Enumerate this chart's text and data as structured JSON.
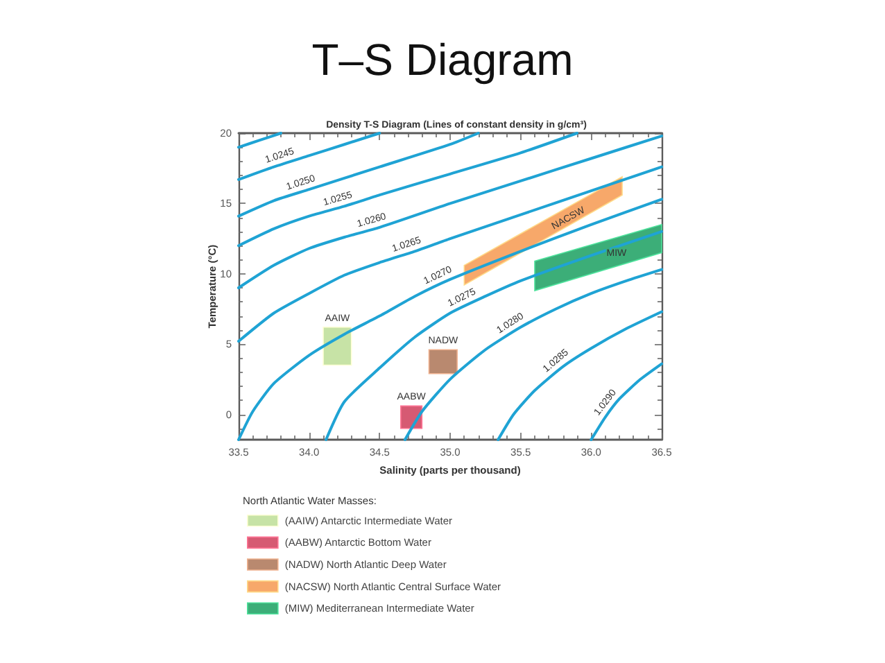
{
  "chart_data": {
    "type": "line",
    "title": "T–S Diagram",
    "subtitle": "Density T-S Diagram (Lines of constant density in g/cm³)",
    "xlabel": "Salinity (parts per thousand)",
    "ylabel": "Temperature (°C)",
    "legend_title": "North Atlantic Water Masses:",
    "legend": "bottom",
    "xlim": [
      33.5,
      36.5
    ],
    "xticks": [
      33.5,
      {
        "value": 33.6,
        "label": null
      },
      {
        "value": 33.7,
        "label": null
      },
      {
        "value": 33.8,
        "label": null
      },
      {
        "value": 33.9,
        "label": null
      },
      {
        "value": 34,
        "label": "34.0"
      },
      {
        "value": 34.1,
        "label": null
      },
      {
        "value": 34.2,
        "label": null
      },
      {
        "value": 34.3,
        "label": null
      },
      {
        "value": 34.4,
        "label": null
      },
      34.5,
      {
        "value": 34.6,
        "label": null
      },
      {
        "value": 34.7,
        "label": null
      },
      {
        "value": 34.8,
        "label": null
      },
      {
        "value": 34.9,
        "label": null
      },
      {
        "value": 35,
        "label": "35.0"
      },
      {
        "value": 35.1,
        "label": null
      },
      {
        "value": 35.2,
        "label": null
      },
      {
        "value": 35.3,
        "label": null
      },
      {
        "value": 35.4,
        "label": null
      },
      35.5,
      {
        "value": 35.6,
        "label": null
      },
      {
        "value": 35.7,
        "label": null
      },
      {
        "value": 35.8,
        "label": null
      },
      {
        "value": 35.9,
        "label": null
      },
      {
        "value": 36,
        "label": "36.0"
      },
      {
        "value": 36.1,
        "label": null
      },
      {
        "value": 36.2,
        "label": null
      },
      {
        "value": 36.3,
        "label": null
      },
      {
        "value": 36.4,
        "label": null
      },
      36.5
    ],
    "ylim": [
      -1.8,
      20
    ],
    "yticks": [
      {
        "value": -1,
        "label": null
      },
      0,
      {
        "value": 1,
        "label": null
      },
      {
        "value": 2,
        "label": null
      },
      {
        "value": 3,
        "label": null
      },
      {
        "value": 4,
        "label": null
      },
      5,
      {
        "value": 6,
        "label": null
      },
      {
        "value": 7,
        "label": null
      },
      {
        "value": 8,
        "label": null
      },
      {
        "value": 9,
        "label": null
      },
      10,
      {
        "value": 11,
        "label": null
      },
      {
        "value": 12,
        "label": null
      },
      {
        "value": 13,
        "label": null
      },
      {
        "value": 14,
        "label": null
      },
      15,
      {
        "value": 16,
        "label": null
      },
      {
        "value": 17,
        "label": null
      },
      {
        "value": 18,
        "label": null
      },
      {
        "value": 19,
        "label": null
      },
      20
    ],
    "series": [
      {
        "type": "area",
        "name": "(AAIW) Antarctic Intermediate Water",
        "color": "#c7e3a6",
        "x": [
          34.1,
          34.3
        ],
        "values": [
          null,
          null
        ],
        "lower": [
          3.5,
          3.5
        ],
        "upper": [
          6.2,
          6.2
        ]
      },
      {
        "type": "area",
        "name": "(AABW) Antarctic Bottom Water",
        "color": "#d65a73",
        "x": [
          34.65,
          34.8
        ],
        "values": [
          null,
          null
        ],
        "lower": [
          -1.0,
          -1.0
        ],
        "upper": [
          0.6,
          0.6
        ]
      },
      {
        "type": "area",
        "name": "(NADW) North Atlantic Deep Water",
        "color": "#b9896f",
        "x": [
          34.85,
          35.05
        ],
        "values": [
          null,
          null
        ],
        "lower": [
          2.9,
          2.9
        ],
        "upper": [
          4.6,
          4.6
        ]
      },
      {
        "type": "area",
        "name": "(NACSW) North Atlantic Central Surface Water",
        "color": "#f7a86a",
        "x": [
          35.1,
          36.22
        ],
        "values": [
          null,
          null
        ],
        "lower": [
          9.2,
          15.6
        ],
        "upper": [
          10.6,
          16.9
        ]
      },
      {
        "type": "area",
        "name": "(MIW) Mediterranean Intermediate Water",
        "color": "#3cae78",
        "x": [
          35.6,
          36.5
        ],
        "values": [
          null,
          null
        ],
        "lower": [
          8.8,
          11.5
        ],
        "upper": [
          10.9,
          13.5
        ]
      },
      {
        "color": "#1fa3d4",
        "x": [
          33.5,
          33.65,
          33.8
        ],
        "values": [
          19.0,
          19.5,
          20.0
        ]
      },
      {
        "color": "#1fa3d4",
        "x": [
          33.5,
          33.75,
          34.0,
          34.25,
          34.5
        ],
        "values": [
          16.7,
          17.6,
          18.4,
          19.2,
          20.0
        ]
      },
      {
        "color": "#1fa3d4",
        "x": [
          33.5,
          33.75,
          34.0,
          34.5,
          35.0,
          35.2
        ],
        "values": [
          14.1,
          15.2,
          16.0,
          17.6,
          19.2,
          20.0
        ]
      },
      {
        "color": "#1fa3d4",
        "x": [
          33.5,
          33.75,
          34.0,
          34.25,
          34.5,
          35.0,
          35.5,
          35.9
        ],
        "values": [
          12.0,
          13.2,
          14.1,
          14.8,
          15.6,
          17.1,
          18.6,
          20.0
        ]
      },
      {
        "color": "#1fa3d4",
        "x": [
          33.5,
          33.75,
          34.0,
          34.25,
          34.5,
          35.0,
          35.5,
          36.0,
          36.5
        ],
        "values": [
          9.0,
          10.6,
          11.8,
          12.6,
          13.3,
          15.0,
          16.6,
          18.2,
          19.8
        ]
      },
      {
        "color": "#1fa3d4",
        "x": [
          33.5,
          33.75,
          34.0,
          34.25,
          34.5,
          34.75,
          35.0,
          35.5,
          36.0,
          36.5
        ],
        "values": [
          5.2,
          7.2,
          8.6,
          9.9,
          10.8,
          11.6,
          12.5,
          14.2,
          15.9,
          17.6
        ]
      },
      {
        "color": "#1fa3d4",
        "x": [
          33.5,
          33.6,
          33.75,
          34.0,
          34.25,
          34.5,
          34.75,
          35.0,
          35.5,
          36.0,
          36.5
        ],
        "values": [
          -1.8,
          0.2,
          2.2,
          4.2,
          5.7,
          7.0,
          8.4,
          9.6,
          11.6,
          13.5,
          15.3
        ]
      },
      {
        "color": "#1fa3d4",
        "x": [
          34.12,
          34.25,
          34.5,
          34.75,
          35.0,
          35.25,
          35.5,
          36.0,
          36.5
        ],
        "values": [
          -1.8,
          0.9,
          3.3,
          5.5,
          7.2,
          8.4,
          9.5,
          11.3,
          13.0
        ]
      },
      {
        "color": "#1fa3d4",
        "x": [
          34.68,
          34.8,
          35.0,
          35.25,
          35.5,
          35.75,
          36.0,
          36.25,
          36.5
        ],
        "values": [
          -1.8,
          0.2,
          2.5,
          4.6,
          6.2,
          7.5,
          8.6,
          9.5,
          10.3
        ]
      },
      {
        "color": "#1fa3d4",
        "x": [
          35.34,
          35.45,
          35.6,
          35.8,
          36.0,
          36.25,
          36.5
        ],
        "values": [
          -1.8,
          0.0,
          1.7,
          3.4,
          4.7,
          6.1,
          7.3
        ]
      },
      {
        "color": "#1fa3d4",
        "x": [
          36.0,
          36.1,
          36.2,
          36.35,
          36.5
        ],
        "values": [
          -1.8,
          -0.2,
          1.1,
          2.5,
          3.6
        ]
      }
    ],
    "annotations": [
      {
        "text": "1.0245",
        "x": 33.81,
        "y": 17.79
      },
      {
        "text": "1.0250",
        "x": 33.96,
        "y": 15.87
      },
      {
        "text": "1.0255",
        "x": 34.22,
        "y": 14.72
      },
      {
        "text": "1.0260",
        "x": 34.46,
        "y": 13.19
      },
      {
        "text": "1.0265",
        "x": 34.71,
        "y": 11.47
      },
      {
        "text": "1.0270",
        "x": 34.94,
        "y": 9.31
      },
      {
        "text": "1.0275",
        "x": 35.11,
        "y": 7.73
      },
      {
        "text": "1.0280",
        "x": 35.46,
        "y": 5.94
      },
      {
        "text": "1.0285",
        "x": 35.79,
        "y": 3.32
      },
      {
        "text": "1.0290",
        "x": 36.15,
        "y": 0.45
      },
      {
        "text": "AAIW",
        "x": 34.2,
        "y": 6.2
      },
      {
        "text": "AABW",
        "x": 34.725,
        "y": 0.6
      },
      {
        "text": "NADW",
        "x": 34.95,
        "y": 4.6
      },
      {
        "text": "NACSW",
        "x": 35.84,
        "y": 13.9
      },
      {
        "text": "MIW",
        "x": 36.18,
        "y": 11.4
      }
    ]
  }
}
